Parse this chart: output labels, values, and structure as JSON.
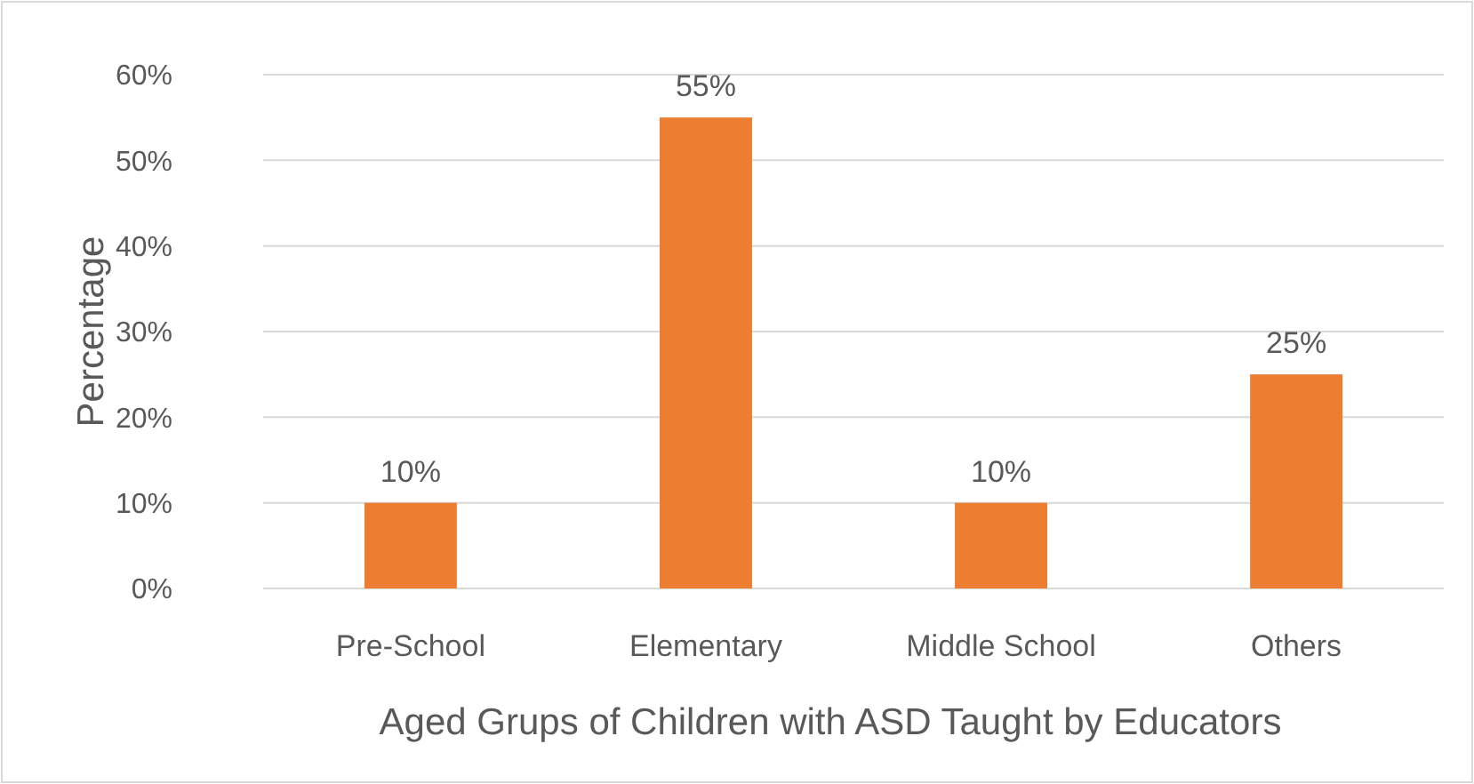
{
  "chart_data": {
    "type": "bar",
    "xlabel": "Aged Grups of Children with ASD Taught by Educators",
    "ylabel": "Percentage",
    "categories": [
      "Pre-School",
      "Elementary",
      "Middle School",
      "Others"
    ],
    "values": [
      10,
      55,
      10,
      25
    ],
    "value_labels": [
      "10%",
      "55%",
      "10%",
      "25%"
    ],
    "color": "#ed7d31",
    "ylim": [
      0,
      60
    ],
    "yticks": [
      {
        "value": 0,
        "label": "0%"
      },
      {
        "value": 10,
        "label": "10%"
      },
      {
        "value": 20,
        "label": "20%"
      },
      {
        "value": 30,
        "label": "30%"
      },
      {
        "value": 40,
        "label": "40%"
      },
      {
        "value": 50,
        "label": "50%"
      },
      {
        "value": 60,
        "label": "60%"
      }
    ],
    "grid": "y"
  }
}
